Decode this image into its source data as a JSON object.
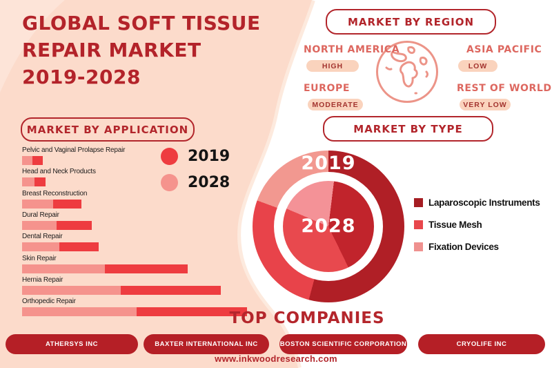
{
  "page": {
    "footer_url": "www.inkwoodresearch.com",
    "colors": {
      "background_peach": "#fcdbcb",
      "background_peach_light": "#fde4d8",
      "accent_dark_red": "#b2252b",
      "coral_label": "#dd675f",
      "badge_bg": "#fad3bd",
      "badge_text": "#a3342f"
    }
  },
  "title": {
    "text": "GLOBAL SOFT TISSUE\nREPAIR MARKET\n2019-2028"
  },
  "region_section": {
    "header": "MARKET BY REGION",
    "regions": [
      {
        "name": "NORTH AMERICA",
        "level": "HIGH"
      },
      {
        "name": "ASIA PACIFIC",
        "level": "LOW"
      },
      {
        "name": "EUROPE",
        "level": "MODERATE"
      },
      {
        "name": "REST OF WORLD",
        "level": "VERY LOW"
      }
    ]
  },
  "application_section": {
    "header": "MARKET BY APPLICATION",
    "legend": [
      {
        "label": "2019",
        "color": "#ee3c40"
      },
      {
        "label": "2028",
        "color": "#f5938d"
      }
    ]
  },
  "type_section": {
    "header": "MARKET BY TYPE",
    "outer_ring_label": "2019",
    "inner_circle_label": "2028",
    "legend": [
      {
        "label": "Laparoscopic Instruments",
        "color": "#a51d23"
      },
      {
        "label": "Tissue Mesh",
        "color": "#e8474c"
      },
      {
        "label": "Fixation Devices",
        "color": "#ef918f"
      }
    ]
  },
  "companies_section": {
    "header": "TOP COMPANIES",
    "companies": [
      "ATHERSYS INC",
      "BAXTER INTERNATIONAL INC",
      "BOSTON SCIENTIFIC CORPORATION",
      "CRYOLIFE INC"
    ]
  },
  "chart_data": [
    {
      "type": "bar",
      "title": "MARKET BY APPLICATION",
      "orientation": "horizontal",
      "stacked": true,
      "categories": [
        "Pelvic and Vaginal Prolapse Repair",
        "Head and Neck Products",
        "Breast Reconstruction",
        "Dural Repair",
        "Dental Repair",
        "Skin Repair",
        "Hernia Repair",
        "Orthopedic Repair"
      ],
      "series": [
        {
          "name": "2028",
          "color": "#f5938d",
          "values": [
            15,
            18,
            45,
            50,
            54,
            120,
            143,
            166
          ]
        },
        {
          "name": "2019",
          "color": "#ee3c40",
          "values": [
            15,
            16,
            41,
            51,
            57,
            120,
            145,
            160
          ]
        }
      ],
      "value_unit": "relative length (px), no numeric axis shown",
      "legend_position": "top-right",
      "grid": false
    },
    {
      "type": "pie",
      "title": "MARKET BY TYPE - 2019 (outer ring)",
      "start_angle_deg": 0,
      "segments": [
        {
          "label": "Laparoscopic Instruments",
          "deg": 195,
          "color": "#b01f26"
        },
        {
          "label": "Tissue Mesh",
          "deg": 95,
          "color": "#e8434a"
        },
        {
          "label": "Fixation Devices",
          "deg": 70,
          "color": "#f29890"
        }
      ]
    },
    {
      "type": "pie",
      "title": "MARKET BY TYPE - 2028 (inner circle)",
      "start_angle_deg": 0,
      "segments": [
        {
          "label": "Fixation Devices",
          "deg": 7,
          "color": "#f49297"
        },
        {
          "label": "Laparoscopic Instruments",
          "deg": 147,
          "color": "#c1242c"
        },
        {
          "label": "Tissue Mesh",
          "deg": 139,
          "color": "#e8494e"
        },
        {
          "label": "Fixation Devices",
          "deg": 67,
          "color": "#f49297"
        }
      ]
    }
  ]
}
